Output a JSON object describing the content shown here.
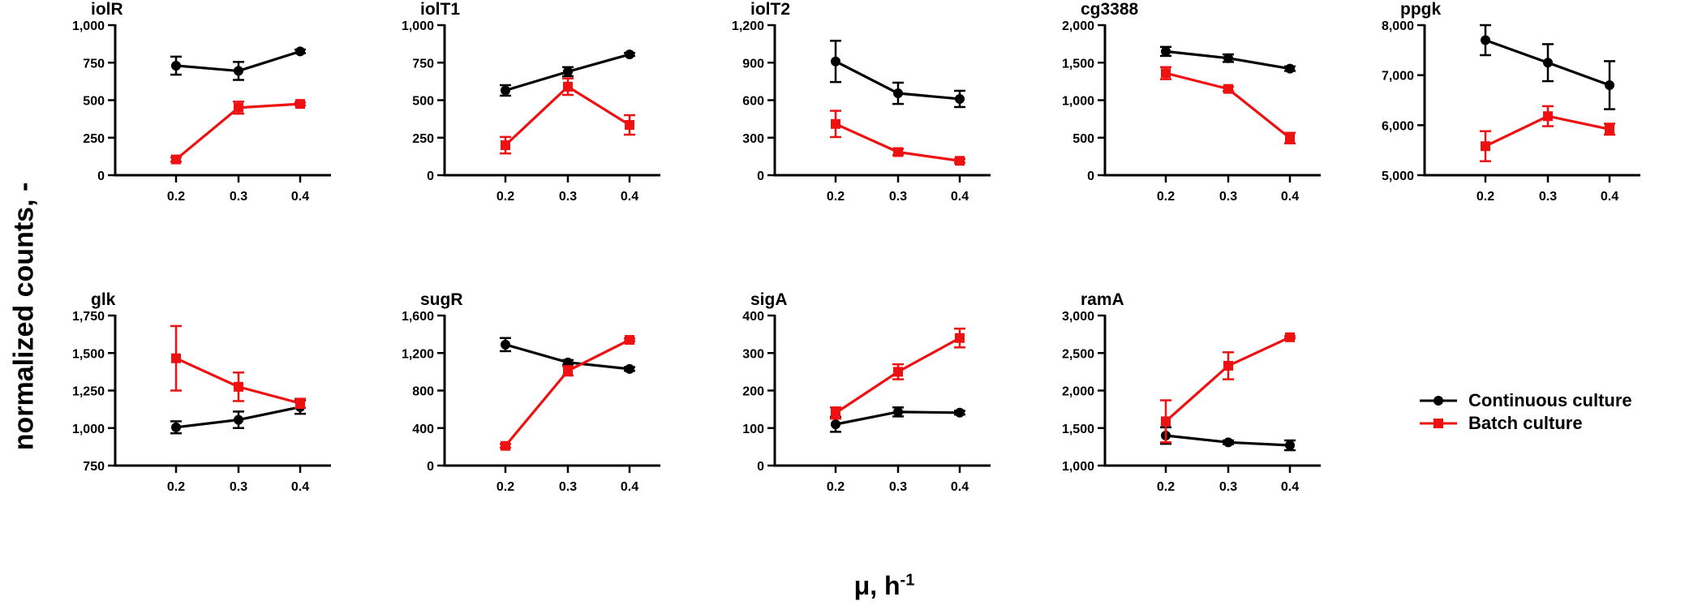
{
  "ylabel": "normalized counts, -",
  "xlabel_main": "μ, h",
  "xlabel_exp": "-1",
  "legend": {
    "continuous": "Continuous culture",
    "batch": "Batch culture"
  },
  "colors": {
    "continuous": "#000000",
    "batch": "#ee1111"
  },
  "chart_data": [
    {
      "type": "line",
      "title": "iolR",
      "x": [
        0.2,
        0.3,
        0.4
      ],
      "xticks": [
        "0.2",
        "0.3",
        "0.4"
      ],
      "ylim": [
        0,
        1000
      ],
      "yticks": [
        "0",
        "250",
        "500",
        "750",
        "1,000"
      ],
      "ytick_values": [
        0,
        250,
        500,
        750,
        1000
      ],
      "series": [
        {
          "name": "Continuous culture",
          "values": [
            730,
            695,
            825
          ],
          "errors": [
            60,
            60,
            12
          ]
        },
        {
          "name": "Batch culture",
          "values": [
            105,
            450,
            475
          ],
          "errors": [
            15,
            40,
            10
          ]
        }
      ]
    },
    {
      "type": "line",
      "title": "iolT1",
      "x": [
        0.2,
        0.3,
        0.4
      ],
      "xticks": [
        "0.2",
        "0.3",
        "0.4"
      ],
      "ylim": [
        0,
        1000
      ],
      "yticks": [
        "0",
        "250",
        "500",
        "750",
        "1,000"
      ],
      "ytick_values": [
        0,
        250,
        500,
        750,
        1000
      ],
      "series": [
        {
          "name": "Continuous culture",
          "values": [
            565,
            690,
            805
          ],
          "errors": [
            35,
            30,
            10
          ]
        },
        {
          "name": "Batch culture",
          "values": [
            200,
            590,
            335
          ],
          "errors": [
            55,
            55,
            65
          ]
        }
      ]
    },
    {
      "type": "line",
      "title": "iolT2",
      "x": [
        0.2,
        0.3,
        0.4
      ],
      "xticks": [
        "0.2",
        "0.3",
        "0.4"
      ],
      "ylim": [
        0,
        1200
      ],
      "yticks": [
        "0",
        "300",
        "600",
        "900",
        "1,200"
      ],
      "ytick_values": [
        0,
        300,
        600,
        900,
        1200
      ],
      "series": [
        {
          "name": "Continuous culture",
          "values": [
            910,
            655,
            610
          ],
          "errors": [
            165,
            85,
            65
          ]
        },
        {
          "name": "Batch culture",
          "values": [
            410,
            185,
            115
          ],
          "errors": [
            105,
            25,
            15
          ]
        }
      ]
    },
    {
      "type": "line",
      "title": "cg3388",
      "x": [
        0.2,
        0.3,
        0.4
      ],
      "xticks": [
        "0.2",
        "0.3",
        "0.4"
      ],
      "ylim": [
        0,
        2000
      ],
      "yticks": [
        "0",
        "500",
        "1,000",
        "1,500",
        "2,000"
      ],
      "ytick_values": [
        0,
        500,
        1000,
        1500,
        2000
      ],
      "series": [
        {
          "name": "Continuous culture",
          "values": [
            1650,
            1560,
            1420
          ],
          "errors": [
            60,
            50,
            30
          ]
        },
        {
          "name": "Batch culture",
          "values": [
            1360,
            1150,
            495
          ],
          "errors": [
            80,
            30,
            70
          ]
        }
      ]
    },
    {
      "type": "line",
      "title": "ppgk",
      "x": [
        0.2,
        0.3,
        0.4
      ],
      "xticks": [
        "0.2",
        "0.3",
        "0.4"
      ],
      "ylim": [
        5000,
        8000
      ],
      "yticks": [
        "5,000",
        "6,000",
        "7,000",
        "8,000"
      ],
      "ytick_values": [
        5000,
        6000,
        7000,
        8000
      ],
      "series": [
        {
          "name": "Continuous culture",
          "values": [
            7700,
            7250,
            6800
          ],
          "errors": [
            300,
            370,
            480
          ]
        },
        {
          "name": "Batch culture",
          "values": [
            5580,
            6180,
            5920
          ],
          "errors": [
            300,
            200,
            110
          ]
        }
      ]
    },
    {
      "type": "line",
      "title": "glk",
      "x": [
        0.2,
        0.3,
        0.4
      ],
      "xticks": [
        "0.2",
        "0.3",
        "0.4"
      ],
      "ylim": [
        750,
        1750
      ],
      "yticks": [
        "750",
        "1,000",
        "1,250",
        "1,500",
        "1,750"
      ],
      "ytick_values": [
        750,
        1000,
        1250,
        1500,
        1750
      ],
      "series": [
        {
          "name": "Continuous culture",
          "values": [
            1005,
            1055,
            1140
          ],
          "errors": [
            40,
            55,
            45
          ]
        },
        {
          "name": "Batch culture",
          "values": [
            1465,
            1275,
            1165
          ],
          "errors": [
            215,
            95,
            30
          ]
        }
      ]
    },
    {
      "type": "line",
      "title": "sugR",
      "x": [
        0.2,
        0.3,
        0.4
      ],
      "xticks": [
        "0.2",
        "0.3",
        "0.4"
      ],
      "ylim": [
        0,
        1600
      ],
      "yticks": [
        "0",
        "400",
        "800",
        "1,200",
        "1,600"
      ],
      "ytick_values": [
        0,
        400,
        800,
        1200,
        1600
      ],
      "series": [
        {
          "name": "Continuous culture",
          "values": [
            1290,
            1100,
            1030
          ],
          "errors": [
            70,
            25,
            20
          ]
        },
        {
          "name": "Batch culture",
          "values": [
            210,
            1010,
            1340
          ],
          "errors": [
            20,
            50,
            15
          ]
        }
      ]
    },
    {
      "type": "line",
      "title": "sigA",
      "x": [
        0.2,
        0.3,
        0.4
      ],
      "xticks": [
        "0.2",
        "0.3",
        "0.4"
      ],
      "ylim": [
        0,
        400
      ],
      "yticks": [
        "0",
        "100",
        "200",
        "300",
        "400"
      ],
      "ytick_values": [
        0,
        100,
        200,
        300,
        400
      ],
      "series": [
        {
          "name": "Continuous culture",
          "values": [
            110,
            143,
            141
          ],
          "errors": [
            20,
            12,
            5
          ]
        },
        {
          "name": "Batch culture",
          "values": [
            140,
            250,
            340
          ],
          "errors": [
            15,
            20,
            25
          ]
        }
      ]
    },
    {
      "type": "line",
      "title": "ramA",
      "x": [
        0.2,
        0.3,
        0.4
      ],
      "xticks": [
        "0.2",
        "0.3",
        "0.4"
      ],
      "ylim": [
        1000,
        3000
      ],
      "yticks": [
        "1,000",
        "1,500",
        "2,000",
        "2,500",
        "3,000"
      ],
      "ytick_values": [
        1000,
        1500,
        2000,
        2500,
        3000
      ],
      "series": [
        {
          "name": "Continuous culture",
          "values": [
            1400,
            1310,
            1270
          ],
          "errors": [
            110,
            25,
            65
          ]
        },
        {
          "name": "Batch culture",
          "values": [
            1590,
            2330,
            2710
          ],
          "errors": [
            280,
            180,
            15
          ]
        }
      ]
    }
  ]
}
